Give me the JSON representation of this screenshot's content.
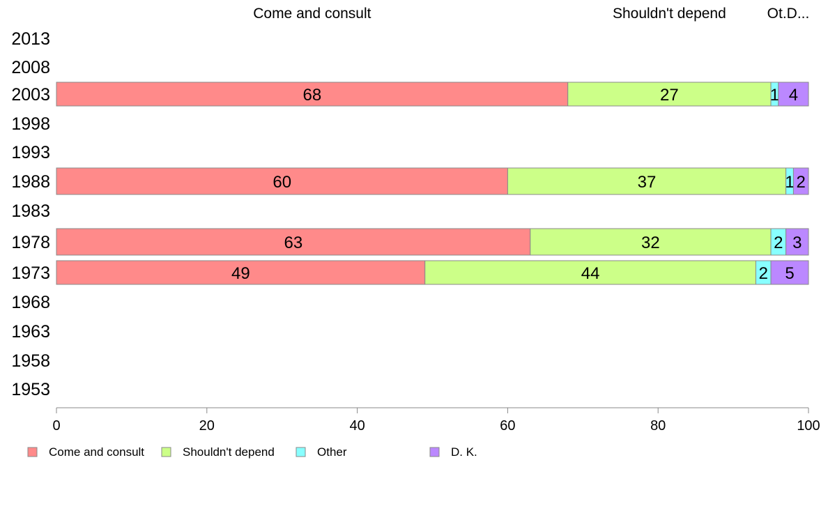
{
  "chart_data": {
    "type": "bar",
    "orientation": "horizontal",
    "stacked": true,
    "categories": [
      "2013",
      "2008",
      "2003",
      "1998",
      "1993",
      "1988",
      "1983",
      "1978",
      "1973",
      "1968",
      "1963",
      "1958",
      "1953"
    ],
    "series": [
      {
        "name": "Come and consult",
        "color": "#ff8a8a",
        "values": [
          null,
          null,
          68,
          null,
          null,
          60,
          null,
          63,
          49,
          null,
          null,
          null,
          null
        ]
      },
      {
        "name": "Shouldn't depend",
        "color": "#ccff88",
        "values": [
          null,
          null,
          27,
          null,
          null,
          37,
          null,
          32,
          44,
          null,
          null,
          null,
          null
        ]
      },
      {
        "name": "Other",
        "color": "#88ffff",
        "values": [
          null,
          null,
          1,
          null,
          null,
          1,
          null,
          2,
          2,
          null,
          null,
          null,
          null
        ]
      },
      {
        "name": "D. K.",
        "color": "#bb88ff",
        "values": [
          null,
          null,
          4,
          null,
          null,
          2,
          null,
          3,
          5,
          null,
          null,
          null,
          null
        ]
      }
    ],
    "top_labels": [
      "Come and consult",
      "Shouldn't depend",
      "Ot.D..."
    ],
    "xlim": [
      0,
      100
    ],
    "x_ticks": [
      0,
      20,
      40,
      60,
      80,
      100
    ],
    "grid": false,
    "legend_position": "bottom-left"
  }
}
